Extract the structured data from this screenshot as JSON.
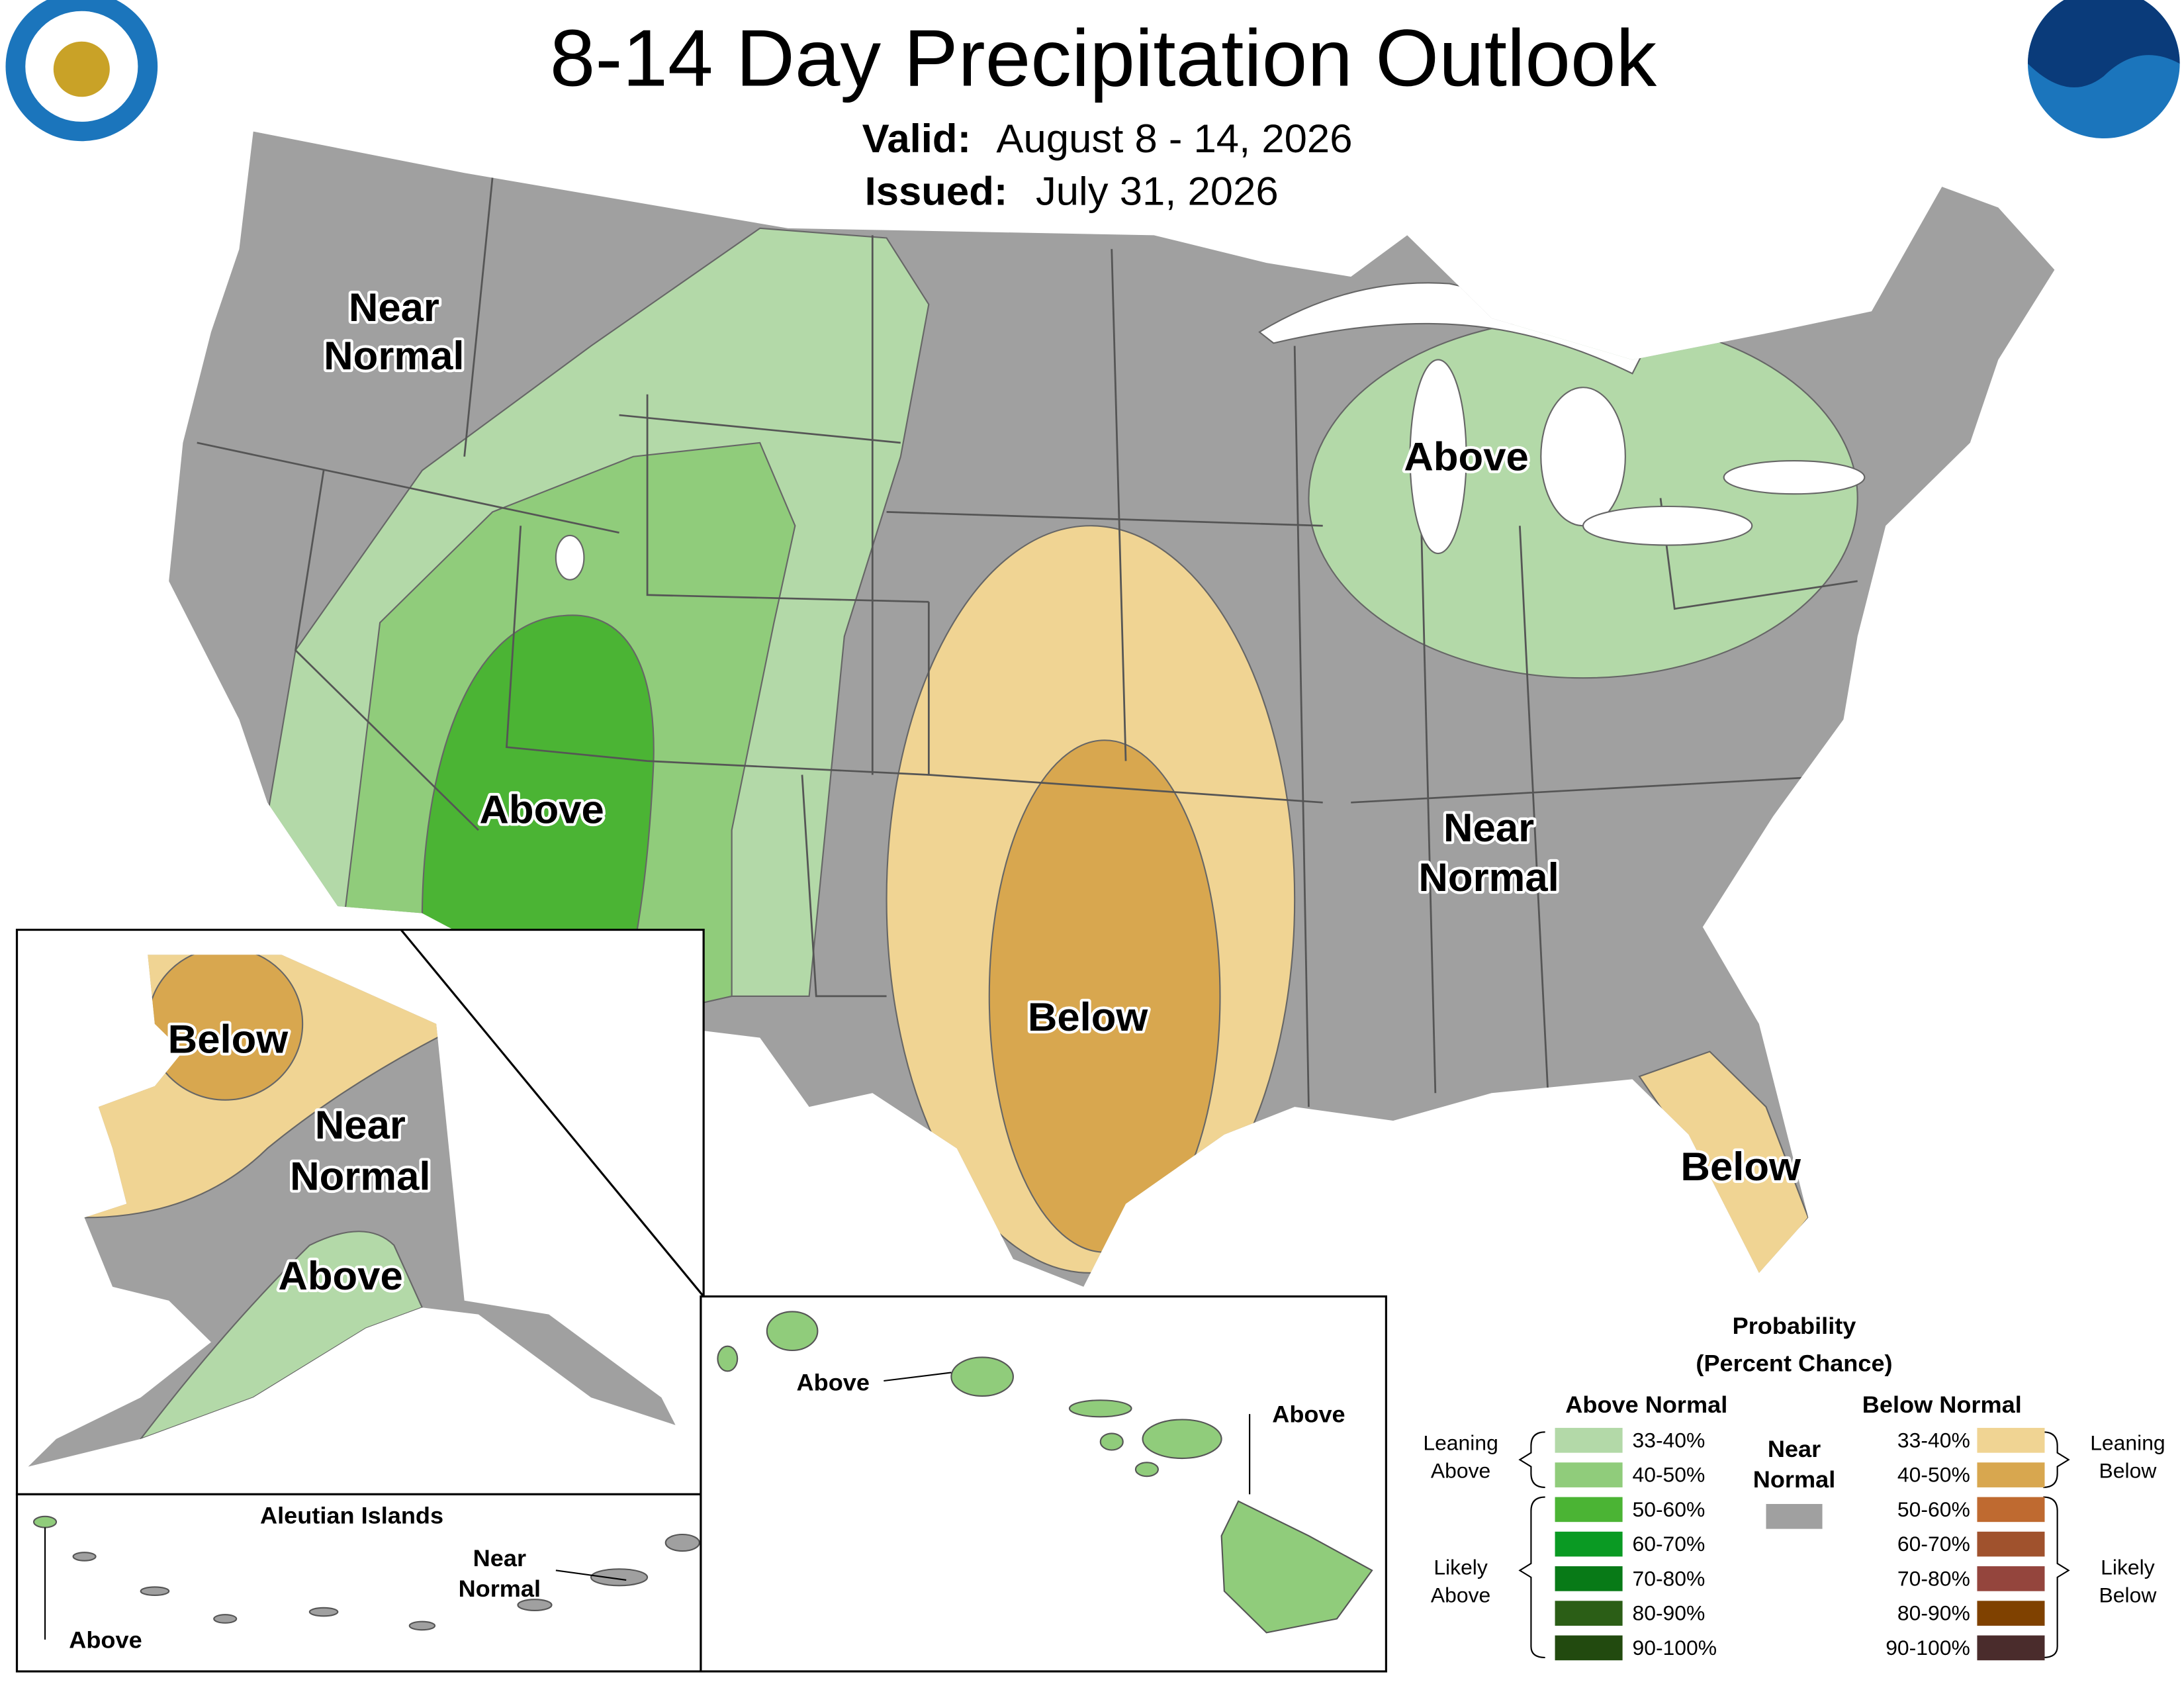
{
  "header": {
    "title": "8-14 Day Precipitation Outlook",
    "valid_label": "Valid:",
    "valid": "August 8 - 14, 2026",
    "issued_label": "Issued:",
    "issued": "July 31, 2026"
  },
  "map_labels": [
    {
      "lines": [
        "Near",
        "Normal"
      ]
    },
    {
      "lines": [
        "Above"
      ]
    },
    {
      "lines": [
        "Below"
      ]
    },
    {
      "lines": [
        "Above"
      ]
    },
    {
      "lines": [
        "Near",
        "Normal"
      ]
    },
    {
      "lines": [
        "Below"
      ]
    }
  ],
  "alaska_labels": [
    {
      "lines": [
        "Below"
      ]
    },
    {
      "lines": [
        "Near",
        "Normal"
      ]
    },
    {
      "lines": [
        "Above"
      ]
    }
  ],
  "aleutians": {
    "title": "Aleutian Islands",
    "labels": [
      {
        "lines": [
          "Near",
          "Normal"
        ]
      },
      {
        "lines": [
          "Above"
        ]
      }
    ]
  },
  "hawaii_labels": [
    {
      "lines": [
        "Above"
      ]
    },
    {
      "lines": [
        "Above"
      ]
    }
  ],
  "legend": {
    "title": [
      "Probability",
      "(Percent Chance)"
    ],
    "above": {
      "heading": "Above Normal",
      "items": [
        {
          "label": "33-40%",
          "color": "#b3d9a8"
        },
        {
          "label": "40-50%",
          "color": "#90cc7b"
        },
        {
          "label": "50-60%",
          "color": "#4bb434"
        },
        {
          "label": "60-70%",
          "color": "#0a9a23"
        },
        {
          "label": "70-80%",
          "color": "#087a17"
        },
        {
          "label": "80-90%",
          "color": "#2b5e16"
        },
        {
          "label": "90-100%",
          "color": "#224a0f"
        }
      ]
    },
    "below": {
      "heading": "Below Normal",
      "items": [
        {
          "label": "33-40%",
          "color": "#f0d493"
        },
        {
          "label": "40-50%",
          "color": "#d8a74f"
        },
        {
          "label": "50-60%",
          "color": "#bf6a30"
        },
        {
          "label": "60-70%",
          "color": "#a0522d"
        },
        {
          "label": "70-80%",
          "color": "#94453d"
        },
        {
          "label": "80-90%",
          "color": "#7f4100"
        },
        {
          "label": "90-100%",
          "color": "#4a2c2c"
        }
      ]
    },
    "near": {
      "heading": [
        "Near",
        "Normal"
      ],
      "color": "#a0a0a0"
    },
    "brackets": {
      "leaning_above": [
        "Leaning",
        "Above"
      ],
      "likely_above": [
        "Likely",
        "Above"
      ],
      "leaning_below": [
        "Leaning",
        "Below"
      ],
      "likely_below": [
        "Likely",
        "Below"
      ]
    }
  }
}
